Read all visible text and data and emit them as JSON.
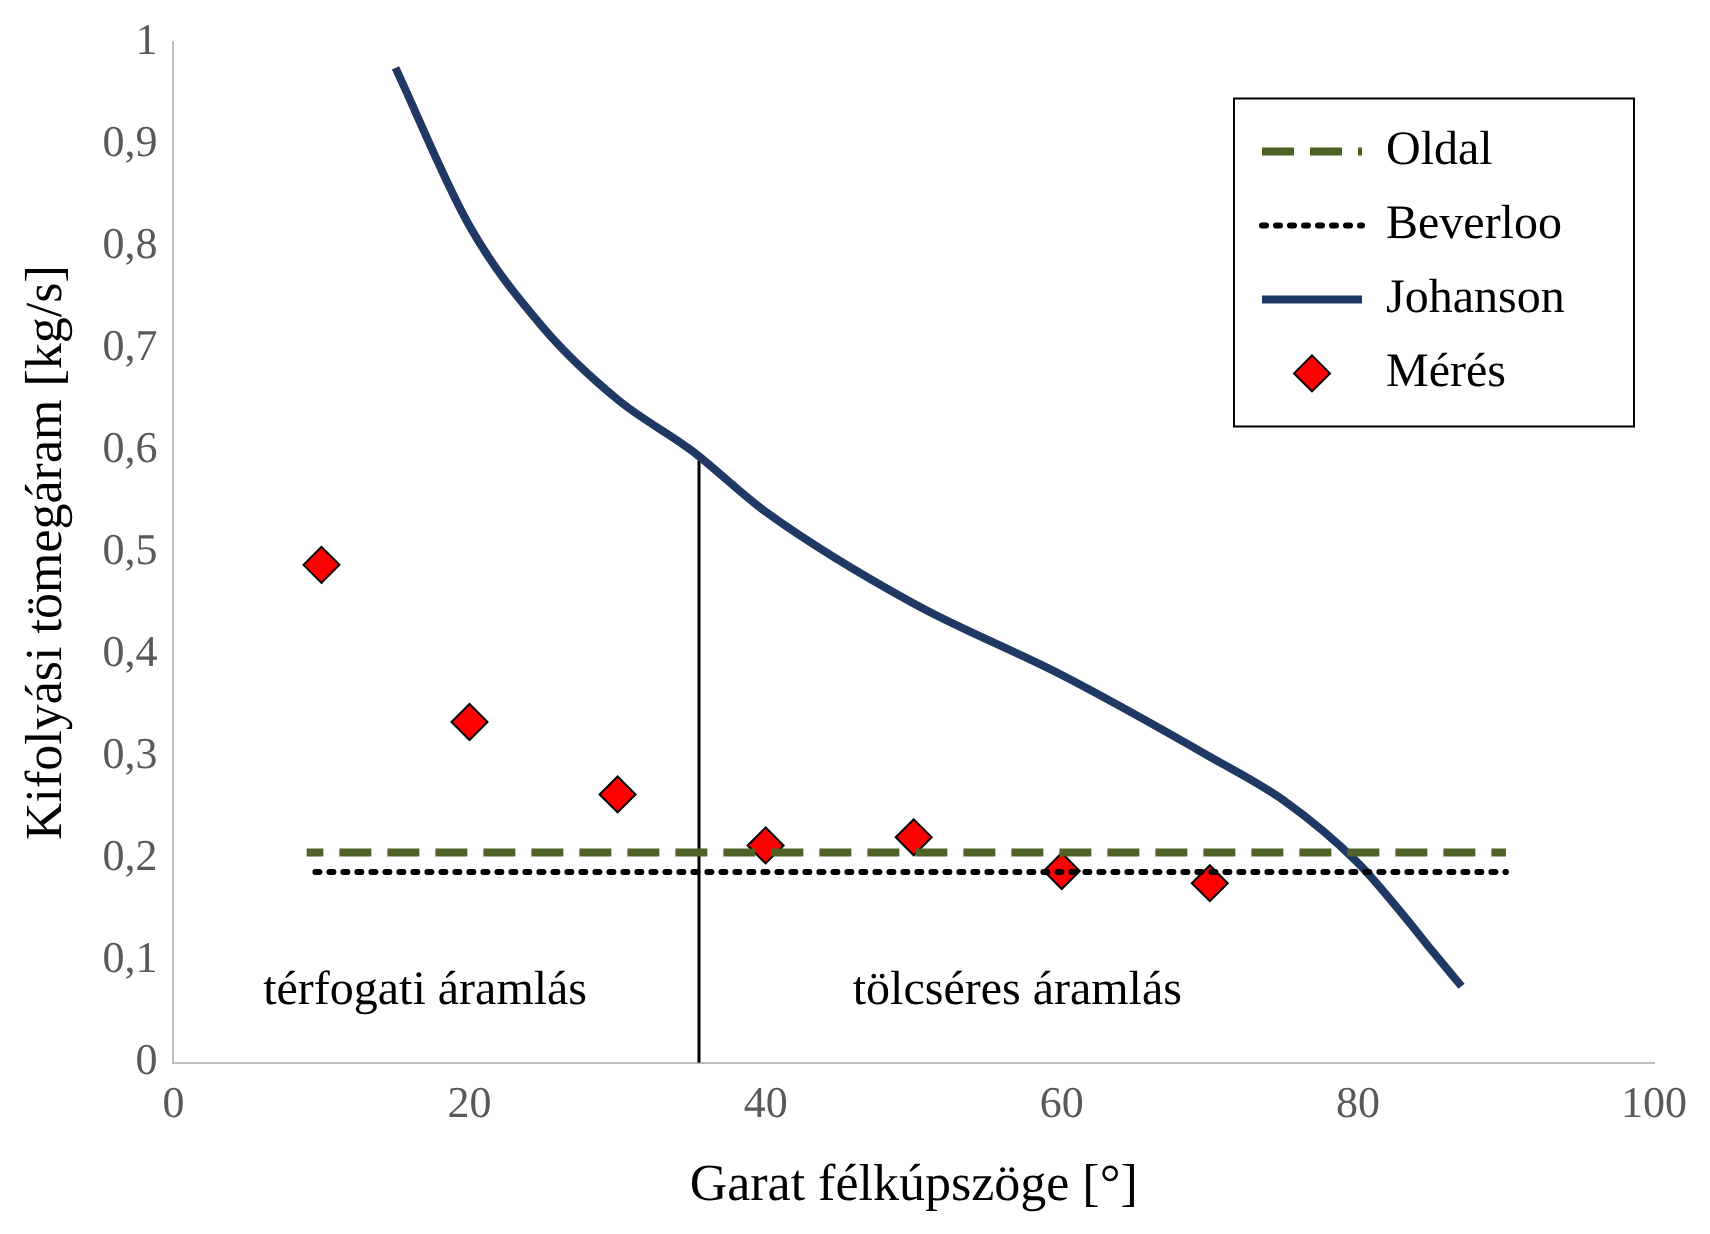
{
  "chart_data": {
    "type": "line",
    "xlabel": "Garat félkúpszöge [°]",
    "ylabel": "Kifolyási tömegáram [kg/s]",
    "xlim": [
      0,
      100
    ],
    "xticks": [
      0,
      20,
      40,
      60,
      80,
      100
    ],
    "ylim": [
      0,
      1
    ],
    "yticks": [
      0,
      {
        "value": 0.1,
        "label": "0,1"
      },
      {
        "value": 0.2,
        "label": "0,2"
      },
      {
        "value": 0.3,
        "label": "0,3"
      },
      {
        "value": 0.4,
        "label": "0,4"
      },
      {
        "value": 0.5,
        "label": "0,5"
      },
      {
        "value": 0.6,
        "label": "0,6"
      },
      {
        "value": 0.7,
        "label": "0,7"
      },
      {
        "value": 0.8,
        "label": "0,8"
      },
      {
        "value": 0.9,
        "label": "0,9"
      },
      1
    ],
    "grid": false,
    "legend": "top right",
    "series": [
      {
        "name": "Oldal",
        "line_style": "dashed",
        "color": "#4f6228",
        "x": [
          9,
          90
        ],
        "values": [
          0.206,
          0.206
        ]
      },
      {
        "name": "Beverloo",
        "line_style": "dotted",
        "color": "#000000",
        "x": [
          9,
          90
        ],
        "values": [
          0.187,
          0.187
        ]
      },
      {
        "name": "Johanson",
        "line_style": "solid",
        "color": "#1f3864",
        "x": [
          15,
          20,
          25,
          30,
          35,
          40,
          50,
          60,
          70,
          75,
          80,
          83,
          85,
          87
        ],
        "values": [
          0.975,
          0.82,
          0.72,
          0.65,
          0.6,
          0.54,
          0.45,
          0.38,
          0.3,
          0.257,
          0.196,
          0.146,
          0.11,
          0.075
        ]
      },
      {
        "name": "Mérés",
        "type": "scatter",
        "marker": "diamond",
        "color": "#ff0000",
        "x": [
          10,
          20,
          30,
          40,
          50,
          60,
          70
        ],
        "values": [
          0.488,
          0.334,
          0.263,
          0.213,
          0.221,
          0.188,
          0.176
        ]
      },
      {
        "line_style": "solid",
        "color": "#000000",
        "x": [
          35.5,
          35.5
        ],
        "values": [
          0,
          0.59
        ]
      }
    ],
    "annotations": [
      "térfogati áramlás",
      "tölcséres áramlás"
    ]
  }
}
